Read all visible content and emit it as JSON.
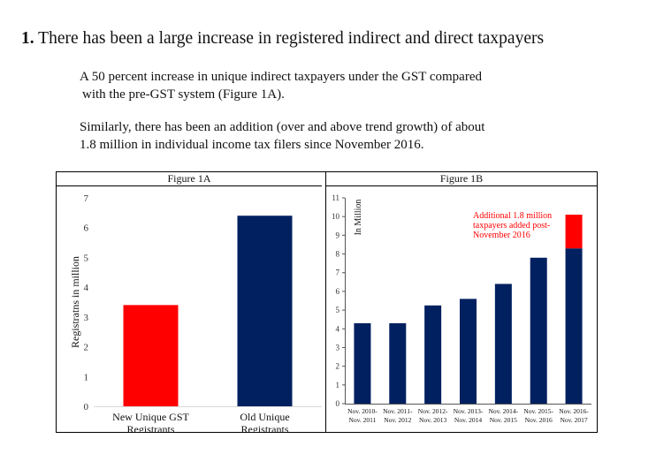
{
  "heading": {
    "number": "1.",
    "text": "There has been a large increase in registered indirect and direct taxpayers"
  },
  "paragraphs": [
    {
      "line1": "A 50 percent increase in unique indirect taxpayers under the GST compared",
      "line2": "with the pre-GST system (Figure 1A)."
    },
    {
      "line1": "Similarly, there has been an addition (over and above trend growth) of about",
      "line2": "1.8 million in individual income tax filers since November 2016."
    }
  ],
  "chart_data": [
    {
      "panel_title": "Figure 1A",
      "type": "bar",
      "ylabel": "Registratns in million",
      "ylim": [
        0,
        7
      ],
      "yticks": [
        0,
        1,
        2,
        3,
        4,
        5,
        6,
        7
      ],
      "categories": [
        {
          "line1": "New Unique GST",
          "line2": "Registrants"
        },
        {
          "line1": "Old Unique",
          "line2": "Registrants"
        }
      ],
      "values": [
        3.4,
        6.4
      ],
      "colors": [
        "#ff0000",
        "#002060"
      ]
    },
    {
      "panel_title": "Figure 1B",
      "type": "bar",
      "ylabel": "In Million",
      "ylim": [
        0,
        11
      ],
      "yticks": [
        0,
        1,
        2,
        3,
        4,
        5,
        6,
        7,
        8,
        9,
        10,
        11
      ],
      "categories": [
        {
          "line1": "Nov. 2010-",
          "line2": "Nov. 2011"
        },
        {
          "line1": "Nov. 2011-",
          "line2": "Nov. 2012"
        },
        {
          "line1": "Nov. 2012-",
          "line2": "Nov. 2013"
        },
        {
          "line1": "Nov. 2013-",
          "line2": "Nov. 2014"
        },
        {
          "line1": "Nov. 2014-",
          "line2": "Nov. 2015"
        },
        {
          "line1": "Nov. 2015-",
          "line2": "Nov. 2016"
        },
        {
          "line1": "Nov. 2016-",
          "line2": "Nov. 2017"
        }
      ],
      "series": [
        {
          "name": "",
          "values": [
            4.3,
            4.3,
            5.25,
            5.6,
            6.4,
            7.8,
            8.3
          ],
          "color": "#002060"
        },
        {
          "name": "",
          "values": [
            0,
            0,
            0,
            0,
            0,
            0,
            1.8
          ],
          "color": "#ff0000"
        }
      ],
      "stacked": true,
      "annotation": {
        "lines": [
          "Additional 1.8 million",
          "taxpayers added post-",
          "November 2016"
        ],
        "color": "#ff0000"
      }
    }
  ]
}
